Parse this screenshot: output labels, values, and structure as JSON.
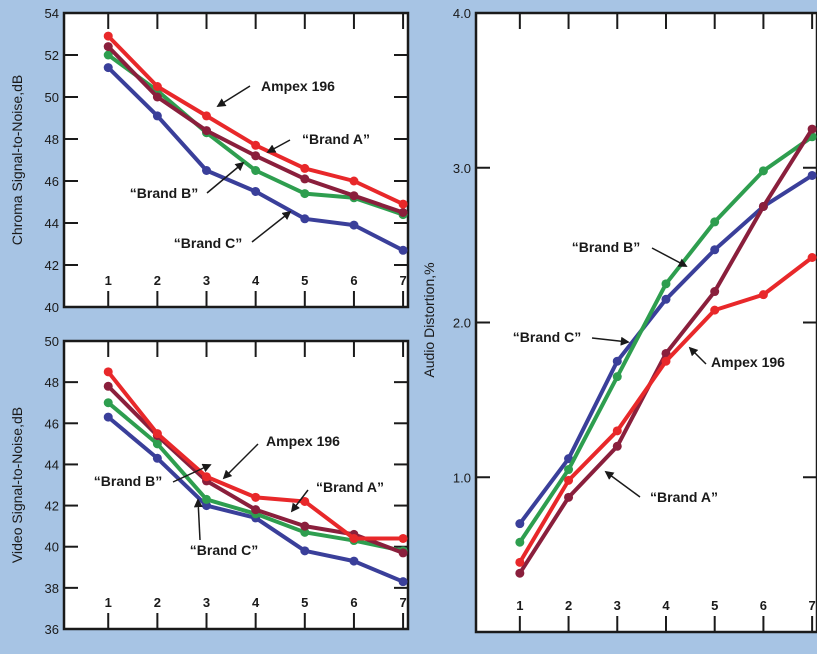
{
  "colors": {
    "background": "#a7c4e4",
    "plot_background": "#ffffff",
    "axis": "#1a1a1a",
    "Ampex 196": "#e8282a",
    "Brand A": "#8a1f3c",
    "Brand B": "#2e9e4f",
    "Brand C": "#3a3f9a"
  },
  "chart_data": [
    {
      "name": "chroma",
      "type": "line",
      "ylabel": "Chroma Signal-to-Noise,dB",
      "xlabel": "",
      "x": [
        1,
        2,
        3,
        4,
        5,
        6,
        7
      ],
      "xticks": [
        "1",
        "2",
        "3",
        "4",
        "5",
        "6",
        "7"
      ],
      "xlim": [
        0.1,
        7.1
      ],
      "ylim": [
        40,
        54
      ],
      "yticks": [
        "40",
        "42",
        "44",
        "46",
        "48",
        "50",
        "52",
        "54"
      ],
      "ytick_values": [
        40,
        42,
        44,
        46,
        48,
        50,
        52,
        54
      ],
      "series": [
        {
          "key": "Brand C",
          "values": [
            51.4,
            49.1,
            46.5,
            45.5,
            44.2,
            43.9,
            42.7
          ]
        },
        {
          "key": "Brand B",
          "values": [
            52.0,
            50.3,
            48.3,
            46.5,
            45.4,
            45.2,
            44.4
          ]
        },
        {
          "key": "Brand A",
          "values": [
            52.4,
            50.0,
            48.4,
            47.2,
            46.1,
            45.3,
            44.5
          ]
        },
        {
          "key": "Ampex 196",
          "values": [
            52.9,
            50.5,
            49.1,
            47.7,
            46.6,
            46.0,
            44.9
          ]
        }
      ],
      "annotations": [
        {
          "text": "Ampex 196",
          "series": "Ampex 196"
        },
        {
          "text": "“Brand A”",
          "series": "Brand A"
        },
        {
          "text": "“Brand B”",
          "series": "Brand B"
        },
        {
          "text": "“Brand C”",
          "series": "Brand C"
        }
      ]
    },
    {
      "name": "video",
      "type": "line",
      "ylabel": "Video Signal-to-Noise,dB",
      "xlabel": "",
      "x": [
        1,
        2,
        3,
        4,
        5,
        6,
        7
      ],
      "xticks": [
        "1",
        "2",
        "3",
        "4",
        "5",
        "6",
        "7"
      ],
      "xlim": [
        0.1,
        7.1
      ],
      "ylim": [
        36,
        50
      ],
      "yticks": [
        "36",
        "38",
        "40",
        "42",
        "44",
        "46",
        "48",
        "50"
      ],
      "ytick_values": [
        36,
        38,
        40,
        42,
        44,
        46,
        48,
        50
      ],
      "series": [
        {
          "key": "Brand C",
          "values": [
            46.3,
            44.3,
            42.0,
            41.4,
            39.8,
            39.3,
            38.3
          ]
        },
        {
          "key": "Brand B",
          "values": [
            47.0,
            45.0,
            42.3,
            41.6,
            40.7,
            40.3,
            39.8
          ]
        },
        {
          "key": "Brand A",
          "values": [
            47.8,
            45.4,
            43.2,
            41.8,
            41.0,
            40.6,
            39.7
          ]
        },
        {
          "key": "Ampex 196",
          "values": [
            48.5,
            45.5,
            43.4,
            42.4,
            42.2,
            40.4,
            40.4
          ]
        }
      ],
      "annotations": [
        {
          "text": "Ampex 196",
          "series": "Ampex 196"
        },
        {
          "text": "“Brand A”",
          "series": "Brand A"
        },
        {
          "text": "“Brand B”",
          "series": "Brand B"
        },
        {
          "text": "“Brand C”",
          "series": "Brand C"
        }
      ]
    },
    {
      "name": "audio",
      "type": "line",
      "ylabel": "Audio Distortion,%",
      "xlabel": "",
      "x": [
        1,
        2,
        3,
        4,
        5,
        6,
        7
      ],
      "xticks": [
        "1",
        "2",
        "3",
        "4",
        "5",
        "6",
        "7"
      ],
      "xlim": [
        0.1,
        7.1
      ],
      "ylim": [
        0,
        4.0
      ],
      "yticks": [
        "1.0",
        "2.0",
        "3.0",
        "4.0"
      ],
      "ytick_values": [
        1.0,
        2.0,
        3.0,
        4.0
      ],
      "series": [
        {
          "key": "Brand C",
          "values": [
            0.7,
            1.12,
            1.75,
            2.15,
            2.47,
            2.75,
            2.95
          ]
        },
        {
          "key": "Brand B",
          "values": [
            0.58,
            1.05,
            1.65,
            2.25,
            2.65,
            2.98,
            3.2
          ]
        },
        {
          "key": "Brand A",
          "values": [
            0.38,
            0.87,
            1.2,
            1.8,
            2.2,
            2.75,
            3.25
          ]
        },
        {
          "key": "Ampex 196",
          "values": [
            0.45,
            0.98,
            1.3,
            1.75,
            2.08,
            2.18,
            2.42
          ]
        }
      ],
      "annotations": [
        {
          "text": "“Brand B”",
          "series": "Brand B"
        },
        {
          "text": "“Brand C”",
          "series": "Brand C"
        },
        {
          "text": "Ampex 196",
          "series": "Ampex 196"
        },
        {
          "text": "“Brand A”",
          "series": "Brand A"
        }
      ]
    }
  ]
}
